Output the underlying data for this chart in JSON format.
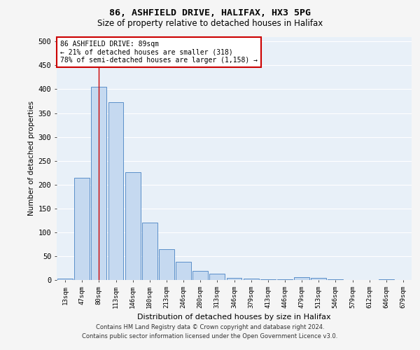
{
  "title_line1": "86, ASHFIELD DRIVE, HALIFAX, HX3 5PG",
  "title_line2": "Size of property relative to detached houses in Halifax",
  "xlabel": "Distribution of detached houses by size in Halifax",
  "ylabel": "Number of detached properties",
  "categories": [
    "13sqm",
    "47sqm",
    "80sqm",
    "113sqm",
    "146sqm",
    "180sqm",
    "213sqm",
    "246sqm",
    "280sqm",
    "313sqm",
    "346sqm",
    "379sqm",
    "413sqm",
    "446sqm",
    "479sqm",
    "513sqm",
    "546sqm",
    "579sqm",
    "612sqm",
    "646sqm",
    "679sqm"
  ],
  "values": [
    3,
    215,
    405,
    373,
    226,
    120,
    65,
    38,
    19,
    13,
    5,
    3,
    2,
    1,
    6,
    5,
    2,
    0,
    0,
    2,
    0
  ],
  "bar_color": "#c5d9f0",
  "bar_edge_color": "#5b8fc9",
  "bg_color": "#e8f0f8",
  "grid_color": "#ffffff",
  "vline_x_index": 2,
  "vline_color": "#cc0000",
  "annotation_box_text": "86 ASHFIELD DRIVE: 89sqm\n← 21% of detached houses are smaller (318)\n78% of semi-detached houses are larger (1,158) →",
  "annotation_box_color": "#cc0000",
  "annotation_box_bg": "#ffffff",
  "ylim": [
    0,
    510
  ],
  "yticks": [
    0,
    50,
    100,
    150,
    200,
    250,
    300,
    350,
    400,
    450,
    500
  ],
  "fig_bg_color": "#f5f5f5",
  "footer_line1": "Contains HM Land Registry data © Crown copyright and database right 2024.",
  "footer_line2": "Contains public sector information licensed under the Open Government Licence v3.0."
}
